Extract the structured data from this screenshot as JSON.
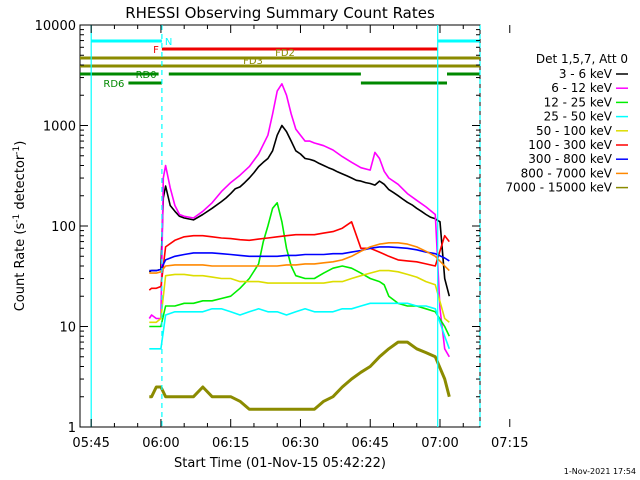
{
  "chart_data": {
    "type": "line",
    "title": "RHESSI Observing Summary Count Rates",
    "xlabel": "Start Time (01-Nov-15 05:42:22)",
    "ylabel_main": "Count Rate (s",
    "ylabel_sup1": "-1",
    "ylabel_mid": " detector",
    "ylabel_sup2": "-1",
    "ylabel_end": ")",
    "yscale": "log",
    "ylim": [
      1,
      10000
    ],
    "xlim_minutes": [
      -2.4,
      83.6
    ],
    "x_tick_labels": [
      "05:45",
      "06:00",
      "06:15",
      "06:30",
      "06:45",
      "07:00",
      "07:15"
    ],
    "x_tick_minutes": [
      0,
      15,
      30,
      45,
      60,
      75,
      90
    ],
    "y_tick_labels": [
      "1",
      "10",
      "100",
      "1000",
      "10000"
    ],
    "y_tick_values": [
      1,
      10,
      100,
      1000,
      10000
    ],
    "legend_title": "Det 1,5,7, Att 0",
    "legend_placement": "right",
    "timestamp": "1-Nov-2021 17:54",
    "series": [
      {
        "name": "3 - 6 keV",
        "color": "#000000",
        "x": [
          12.5,
          13,
          14,
          15,
          15.5,
          16,
          17,
          18,
          19,
          20,
          22,
          24,
          26,
          28,
          29,
          30,
          31,
          32,
          33,
          34,
          35,
          36,
          37,
          38,
          39,
          40,
          41,
          42,
          43,
          44,
          45,
          46,
          47,
          48,
          49,
          50,
          51,
          52,
          53,
          54,
          55,
          56,
          57,
          58,
          59,
          60,
          61,
          62,
          63,
          64,
          65,
          66,
          67,
          68,
          69,
          70,
          71,
          72,
          73,
          74,
          75,
          76,
          77
        ],
        "y": [
          35,
          36,
          36,
          37,
          190,
          250,
          160,
          140,
          125,
          120,
          115,
          130,
          150,
          175,
          190,
          210,
          235,
          245,
          270,
          300,
          340,
          390,
          430,
          470,
          560,
          800,
          1000,
          870,
          700,
          560,
          520,
          470,
          460,
          445,
          420,
          400,
          380,
          365,
          345,
          330,
          315,
          300,
          285,
          280,
          270,
          265,
          255,
          280,
          260,
          230,
          215,
          200,
          185,
          172,
          162,
          150,
          140,
          130,
          122,
          118,
          110,
          30,
          20
        ]
      },
      {
        "name": "6 - 12 keV",
        "color": "#ff00ff",
        "x": [
          12.5,
          13,
          14,
          15,
          15.5,
          16,
          17,
          18,
          19,
          20,
          22,
          24,
          26,
          28,
          30,
          32,
          34,
          36,
          38,
          39,
          40,
          41,
          42,
          43,
          44,
          45,
          46,
          47,
          48,
          49,
          50,
          52,
          54,
          56,
          58,
          60,
          61,
          62,
          63,
          64,
          66,
          68,
          70,
          72,
          74,
          75,
          76,
          77
        ],
        "y": [
          12,
          13,
          12,
          12,
          300,
          400,
          240,
          160,
          130,
          125,
          120,
          140,
          170,
          220,
          270,
          320,
          390,
          520,
          800,
          1300,
          2200,
          2600,
          2000,
          1300,
          920,
          800,
          700,
          700,
          670,
          650,
          630,
          570,
          490,
          430,
          380,
          360,
          540,
          470,
          350,
          300,
          260,
          210,
          180,
          155,
          130,
          15,
          6,
          5
        ]
      },
      {
        "name": "12 - 25 keV",
        "color": "#00ee00",
        "x": [
          12.5,
          13,
          14,
          15,
          16,
          18,
          20,
          22,
          24,
          26,
          28,
          30,
          32,
          34,
          36,
          37,
          38,
          39,
          40,
          41,
          42,
          43,
          44,
          46,
          48,
          50,
          52,
          54,
          56,
          58,
          60,
          62,
          63,
          64,
          66,
          68,
          70,
          72,
          74,
          76,
          77
        ],
        "y": [
          10,
          10,
          10,
          10,
          16,
          16,
          17,
          17,
          18,
          18,
          19,
          20,
          24,
          30,
          42,
          70,
          100,
          150,
          170,
          110,
          60,
          40,
          32,
          30,
          30,
          34,
          38,
          40,
          38,
          34,
          30,
          28,
          26,
          20,
          17,
          16,
          16,
          15,
          14,
          10,
          8
        ]
      },
      {
        "name": "25 - 50 keV",
        "color": "#00ffff",
        "x": [
          12.5,
          13,
          14,
          15,
          16,
          18,
          20,
          22,
          24,
          26,
          28,
          30,
          32,
          34,
          36,
          38,
          40,
          42,
          44,
          46,
          48,
          50,
          52,
          54,
          56,
          58,
          60,
          62,
          64,
          66,
          68,
          70,
          72,
          74,
          76,
          77
        ],
        "y": [
          6,
          6,
          6,
          6,
          13,
          14,
          14,
          14,
          14,
          15,
          15,
          14,
          13,
          14,
          15,
          14,
          14,
          13,
          14,
          15,
          14,
          14,
          14,
          15,
          15,
          16,
          17,
          17,
          17,
          17,
          17,
          16,
          16,
          15,
          8,
          6
        ]
      },
      {
        "name": "50 - 100 keV",
        "color": "#dddd00",
        "x": [
          12.5,
          13,
          14,
          15,
          16,
          18,
          20,
          22,
          24,
          26,
          28,
          30,
          32,
          34,
          36,
          38,
          40,
          42,
          44,
          46,
          48,
          50,
          52,
          54,
          56,
          58,
          60,
          62,
          64,
          66,
          68,
          70,
          72,
          74,
          76,
          77
        ],
        "y": [
          11,
          11,
          11,
          12,
          32,
          33,
          33,
          32,
          32,
          31,
          30,
          30,
          28,
          28,
          28,
          27,
          27,
          27,
          27,
          27,
          27,
          27,
          28,
          28,
          30,
          32,
          34,
          36,
          36,
          35,
          33,
          31,
          28,
          26,
          12,
          11
        ]
      },
      {
        "name": "100 - 300 keV",
        "color": "#ff0000",
        "x": [
          12.5,
          13,
          14,
          15,
          16,
          18,
          20,
          22,
          24,
          26,
          28,
          30,
          32,
          34,
          36,
          38,
          40,
          42,
          44,
          46,
          48,
          50,
          52,
          54,
          56,
          58,
          60,
          62,
          64,
          66,
          68,
          70,
          72,
          74,
          76,
          77
        ],
        "y": [
          23,
          24,
          24,
          25,
          62,
          72,
          78,
          80,
          80,
          78,
          76,
          75,
          73,
          72,
          74,
          76,
          78,
          80,
          82,
          82,
          82,
          85,
          88,
          95,
          110,
          60,
          60,
          55,
          50,
          46,
          45,
          44,
          42,
          40,
          80,
          70
        ]
      },
      {
        "name": "300 - 800 keV",
        "color": "#0000ff",
        "x": [
          12.5,
          13,
          14,
          15,
          16,
          18,
          20,
          22,
          24,
          26,
          28,
          30,
          32,
          34,
          36,
          38,
          40,
          42,
          44,
          46,
          48,
          50,
          52,
          54,
          56,
          58,
          60,
          62,
          64,
          66,
          68,
          70,
          72,
          74,
          76,
          77
        ],
        "y": [
          36,
          36,
          36,
          37,
          46,
          50,
          52,
          54,
          54,
          54,
          53,
          52,
          51,
          50,
          50,
          50,
          50,
          51,
          51,
          52,
          52,
          52,
          53,
          53,
          55,
          57,
          60,
          62,
          62,
          61,
          60,
          58,
          55,
          53,
          48,
          45
        ]
      },
      {
        "name": "800 - 7000 keV",
        "color": "#ff8800",
        "x": [
          12.5,
          13,
          14,
          15,
          16,
          18,
          20,
          22,
          24,
          26,
          28,
          30,
          32,
          34,
          36,
          38,
          40,
          42,
          44,
          46,
          48,
          50,
          52,
          54,
          56,
          58,
          60,
          62,
          64,
          66,
          68,
          70,
          72,
          74,
          76,
          77
        ],
        "y": [
          34,
          34,
          34,
          35,
          40,
          41,
          41,
          41,
          41,
          40,
          40,
          40,
          40,
          40,
          40,
          40,
          40,
          41,
          41,
          42,
          42,
          43,
          44,
          46,
          50,
          56,
          62,
          66,
          68,
          68,
          66,
          62,
          56,
          50,
          40,
          36
        ]
      },
      {
        "name": "7000 - 15000 keV",
        "color": "#8b8b00",
        "x": [
          12.5,
          13,
          14,
          15,
          16,
          18,
          20,
          22,
          24,
          26,
          28,
          30,
          32,
          34,
          36,
          38,
          40,
          42,
          44,
          46,
          48,
          50,
          52,
          54,
          56,
          58,
          60,
          62,
          64,
          66,
          68,
          70,
          72,
          74,
          76,
          77
        ],
        "y": [
          2,
          2,
          2.5,
          2.5,
          2,
          2,
          2,
          2,
          2.5,
          2,
          2,
          2,
          1.8,
          1.5,
          1.5,
          1.5,
          1.5,
          1.5,
          1.5,
          1.5,
          1.5,
          1.8,
          2,
          2.5,
          3,
          3.5,
          4,
          5,
          6,
          7,
          7,
          6,
          5.5,
          5,
          3,
          2
        ]
      }
    ],
    "flags": [
      {
        "label": "N",
        "color": "#00ffff",
        "level": 1,
        "segments": [
          [
            0,
            15.2
          ],
          [
            74.5,
            83.6
          ]
        ]
      },
      {
        "label": "F",
        "color": "#ee0000",
        "level": 2,
        "segments": [
          [
            15.2,
            74.5
          ]
        ]
      },
      {
        "label": "FD2",
        "color": "#8b8b00",
        "level": 3,
        "segments": [
          [
            -2.4,
            83.6
          ]
        ]
      },
      {
        "label": "FD3",
        "color": "#8b8b00",
        "level": 4,
        "segments": [
          [
            -2.4,
            83.6
          ]
        ]
      },
      {
        "label": "RD0",
        "color": "#008800",
        "level": 5,
        "segments": [
          [
            -2.4,
            14.5
          ],
          [
            16.7,
            58
          ],
          [
            76.5,
            83.6
          ]
        ]
      },
      {
        "label": "RD6",
        "color": "#008800",
        "level": 6,
        "segments": [
          [
            8.0,
            15.2
          ],
          [
            58,
            76.5
          ]
        ]
      }
    ],
    "vlines_minutes": [
      0,
      15.2,
      74.5,
      83.6
    ]
  }
}
